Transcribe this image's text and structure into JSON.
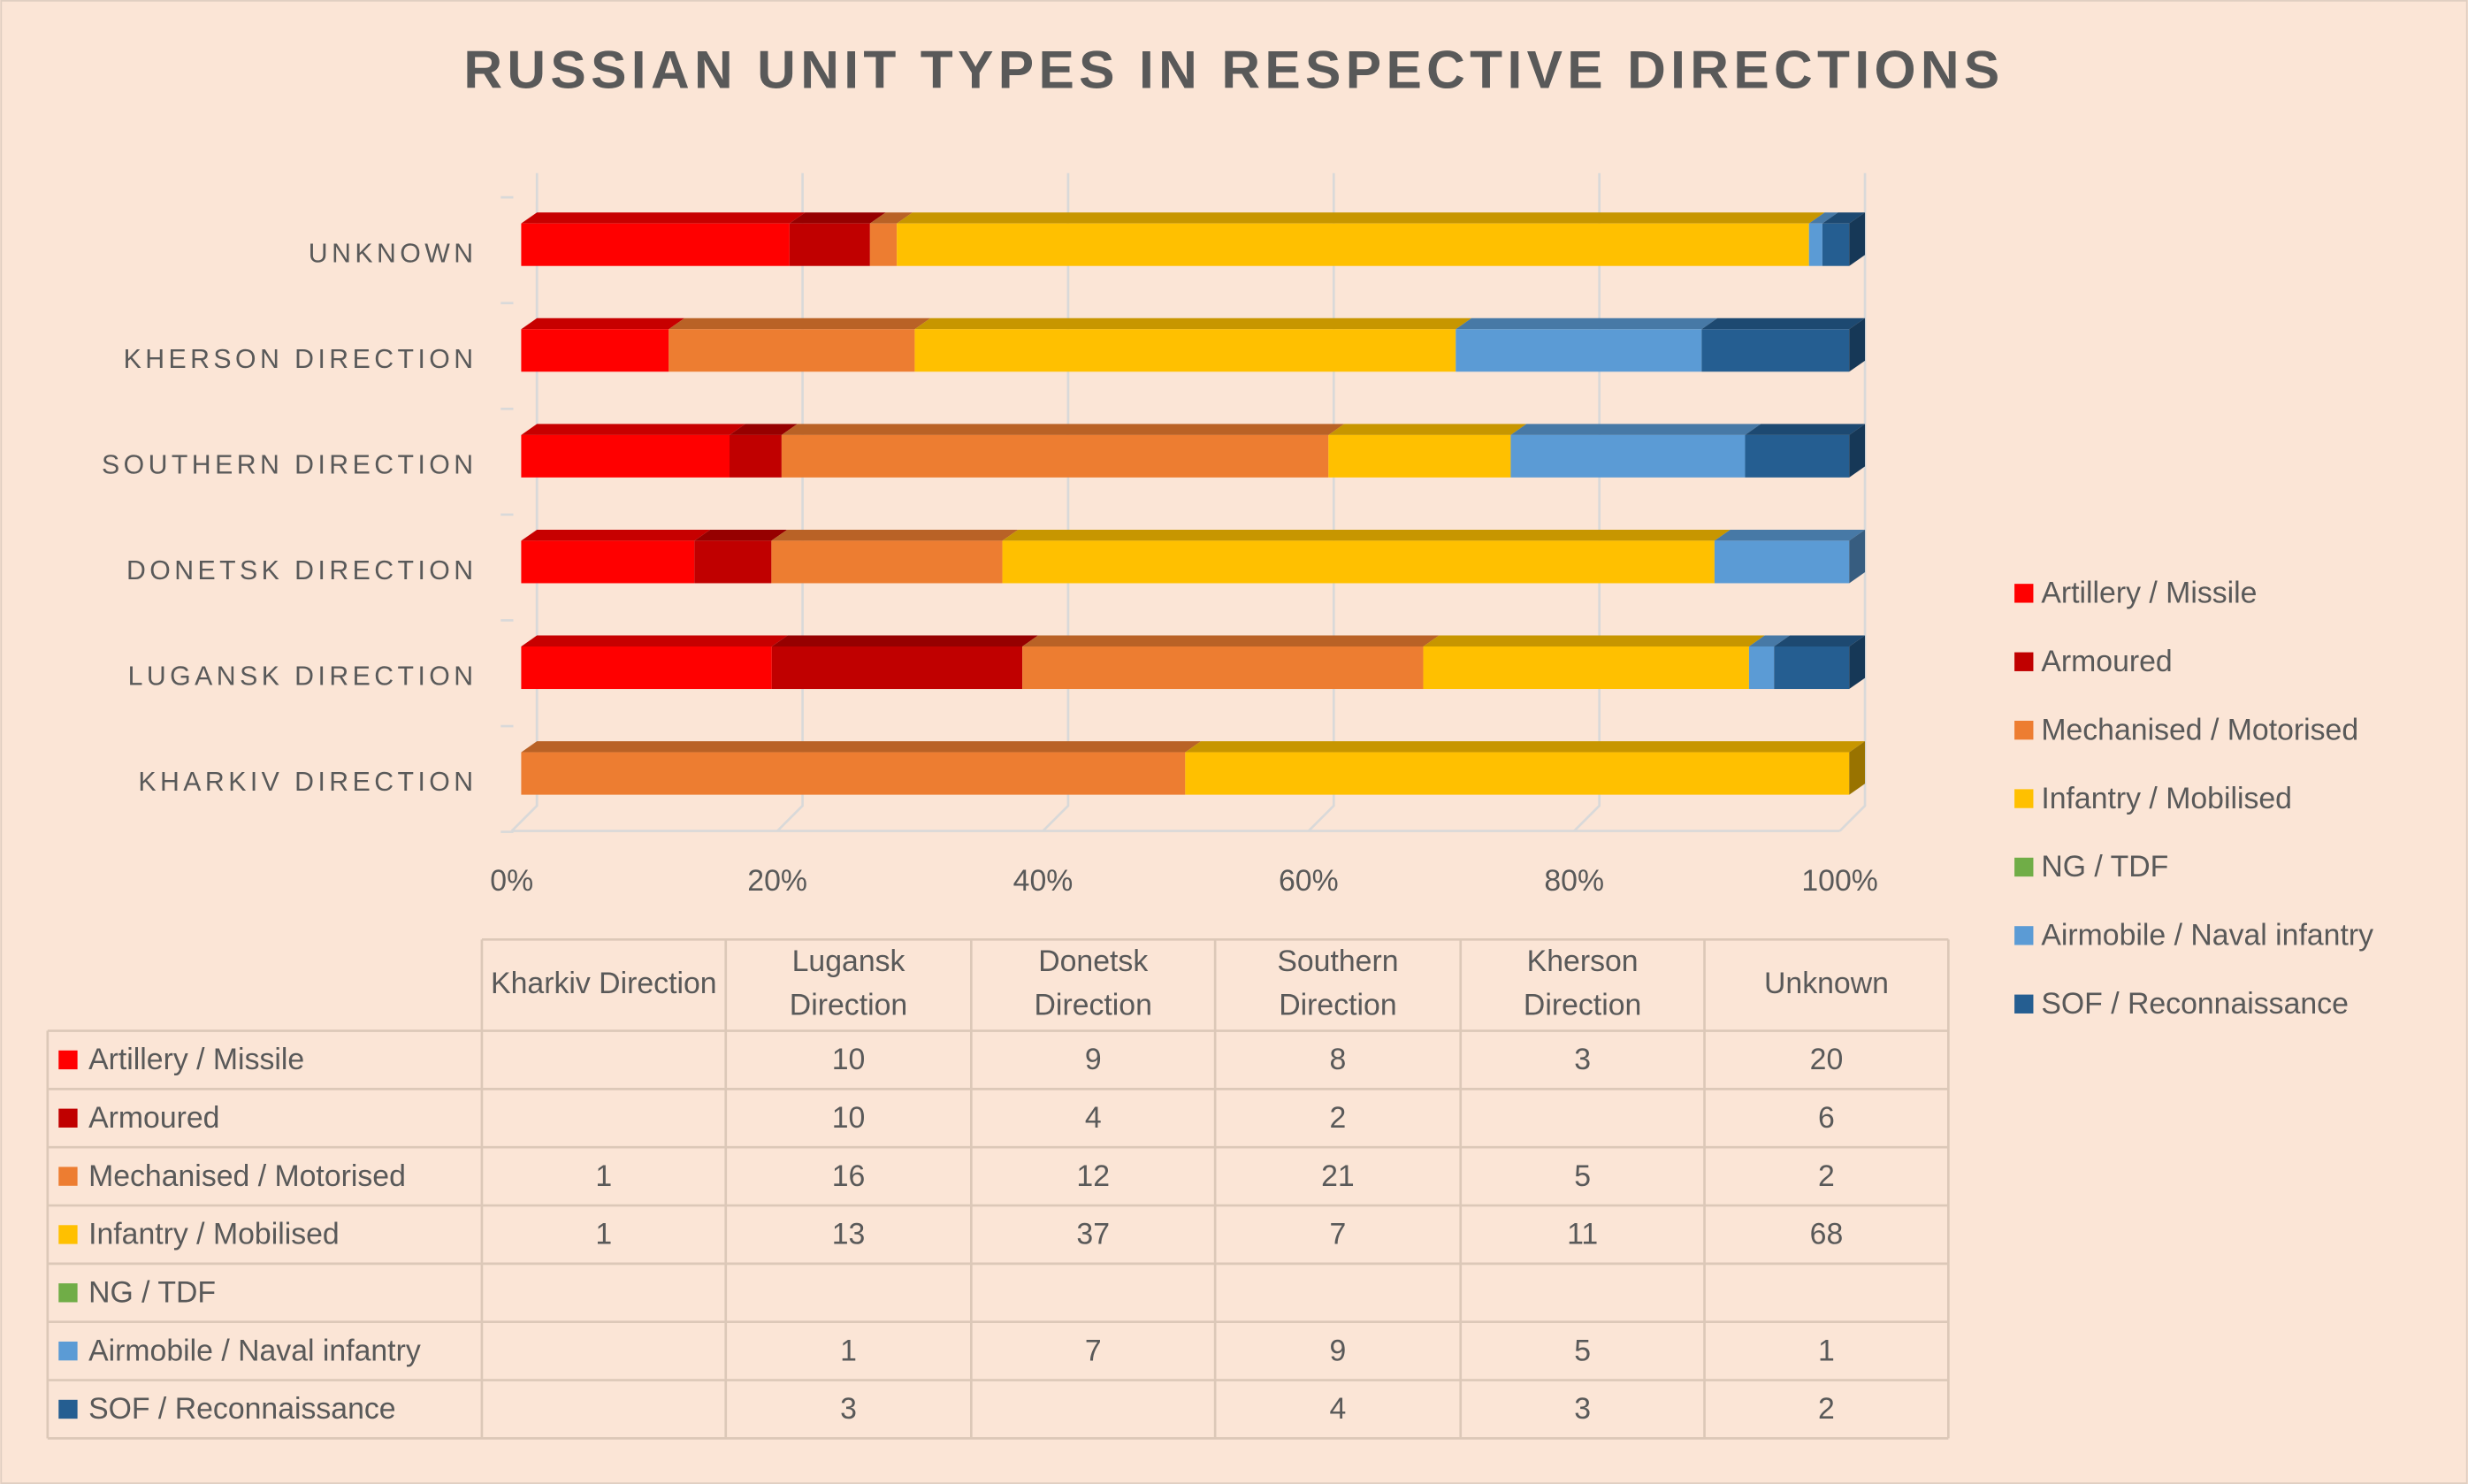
{
  "chart_data": {
    "type": "bar",
    "orientation": "horizontal",
    "stacking": "percent",
    "title": "RUSSIAN UNIT TYPES IN RESPECTIVE DIRECTIONS",
    "categories": [
      "KHARKIV DIRECTION",
      "LUGANSK DIRECTION",
      "DONETSK DIRECTION",
      "SOUTHERN DIRECTION",
      "KHERSON DIRECTION",
      "UNKNOWN"
    ],
    "table_headers": [
      "Kharkiv Direction",
      "Lugansk Direction",
      "Donetsk Direction",
      "Southern Direction",
      "Kherson Direction",
      "Unknown"
    ],
    "series": [
      {
        "name": "Artillery / Missile",
        "color": "#ff0000",
        "values": [
          null,
          10,
          9,
          8,
          3,
          20
        ]
      },
      {
        "name": "Armoured",
        "color": "#c00000",
        "values": [
          null,
          10,
          4,
          2,
          null,
          6
        ]
      },
      {
        "name": "Mechanised / Motorised",
        "color": "#ed7d31",
        "values": [
          1,
          16,
          12,
          21,
          5,
          2
        ]
      },
      {
        "name": "Infantry / Mobilised",
        "color": "#ffc000",
        "values": [
          1,
          13,
          37,
          7,
          11,
          68
        ]
      },
      {
        "name": "NG / TDF",
        "color": "#70ad47",
        "values": [
          null,
          null,
          null,
          null,
          null,
          null
        ]
      },
      {
        "name": "Airmobile / Naval infantry",
        "color": "#5b9bd5",
        "values": [
          null,
          1,
          7,
          9,
          5,
          1
        ]
      },
      {
        "name": "SOF / Reconnaissance",
        "color": "#255e91",
        "values": [
          null,
          3,
          null,
          4,
          3,
          2
        ]
      }
    ],
    "xlim": [
      0,
      100
    ],
    "xticks": [
      {
        "value": 0,
        "label": "0%"
      },
      {
        "value": 20,
        "label": "20%"
      },
      {
        "value": 40,
        "label": "40%"
      },
      {
        "value": 60,
        "label": "60%"
      },
      {
        "value": 80,
        "label": "80%"
      },
      {
        "value": 100,
        "label": "100%"
      }
    ],
    "grid": true,
    "legend": "right"
  }
}
